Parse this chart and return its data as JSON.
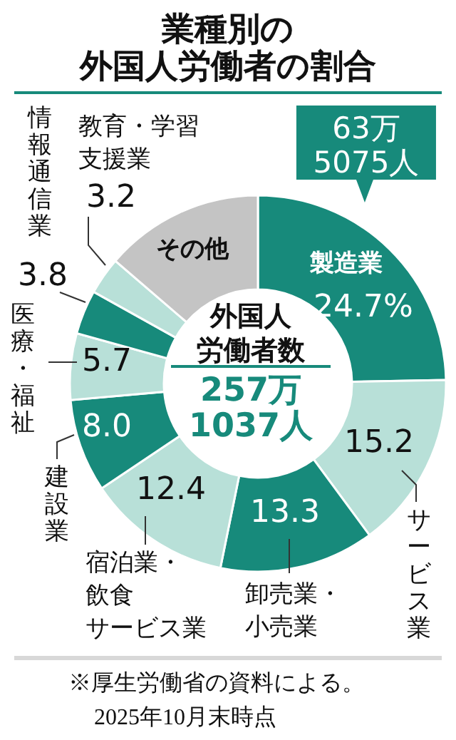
{
  "chart_data": {
    "type": "donut",
    "title": "業種別の外国人労働者の割合",
    "categories": [
      "製造業",
      "サービス業",
      "卸売業・小売業",
      "宿泊業・飲食サービス業",
      "建設業",
      "医療・福祉",
      "情報通信業",
      "教育・学習支援業",
      "その他"
    ],
    "values": [
      24.7,
      15.2,
      13.3,
      12.4,
      8.0,
      5.7,
      3.8,
      3.2,
      13.7
    ],
    "value_labels": [
      "24.7%",
      "15.2",
      "13.3",
      "12.4",
      "8.0",
      "5.7",
      "3.8",
      "3.2",
      null
    ],
    "colors": [
      "#178a7b",
      "#b8e0d8",
      "#178a7b",
      "#b8e0d8",
      "#178a7b",
      "#b8e0d8",
      "#178a7b",
      "#b8e0d8",
      "#c4c4c4"
    ],
    "annotations": [
      "外国人労働者数",
      "257万1037人",
      {
        "text": "63万5075人",
        "x": "製造業"
      },
      "※厚生労働省の資料による。",
      "2025年10月末時点"
    ]
  }
}
